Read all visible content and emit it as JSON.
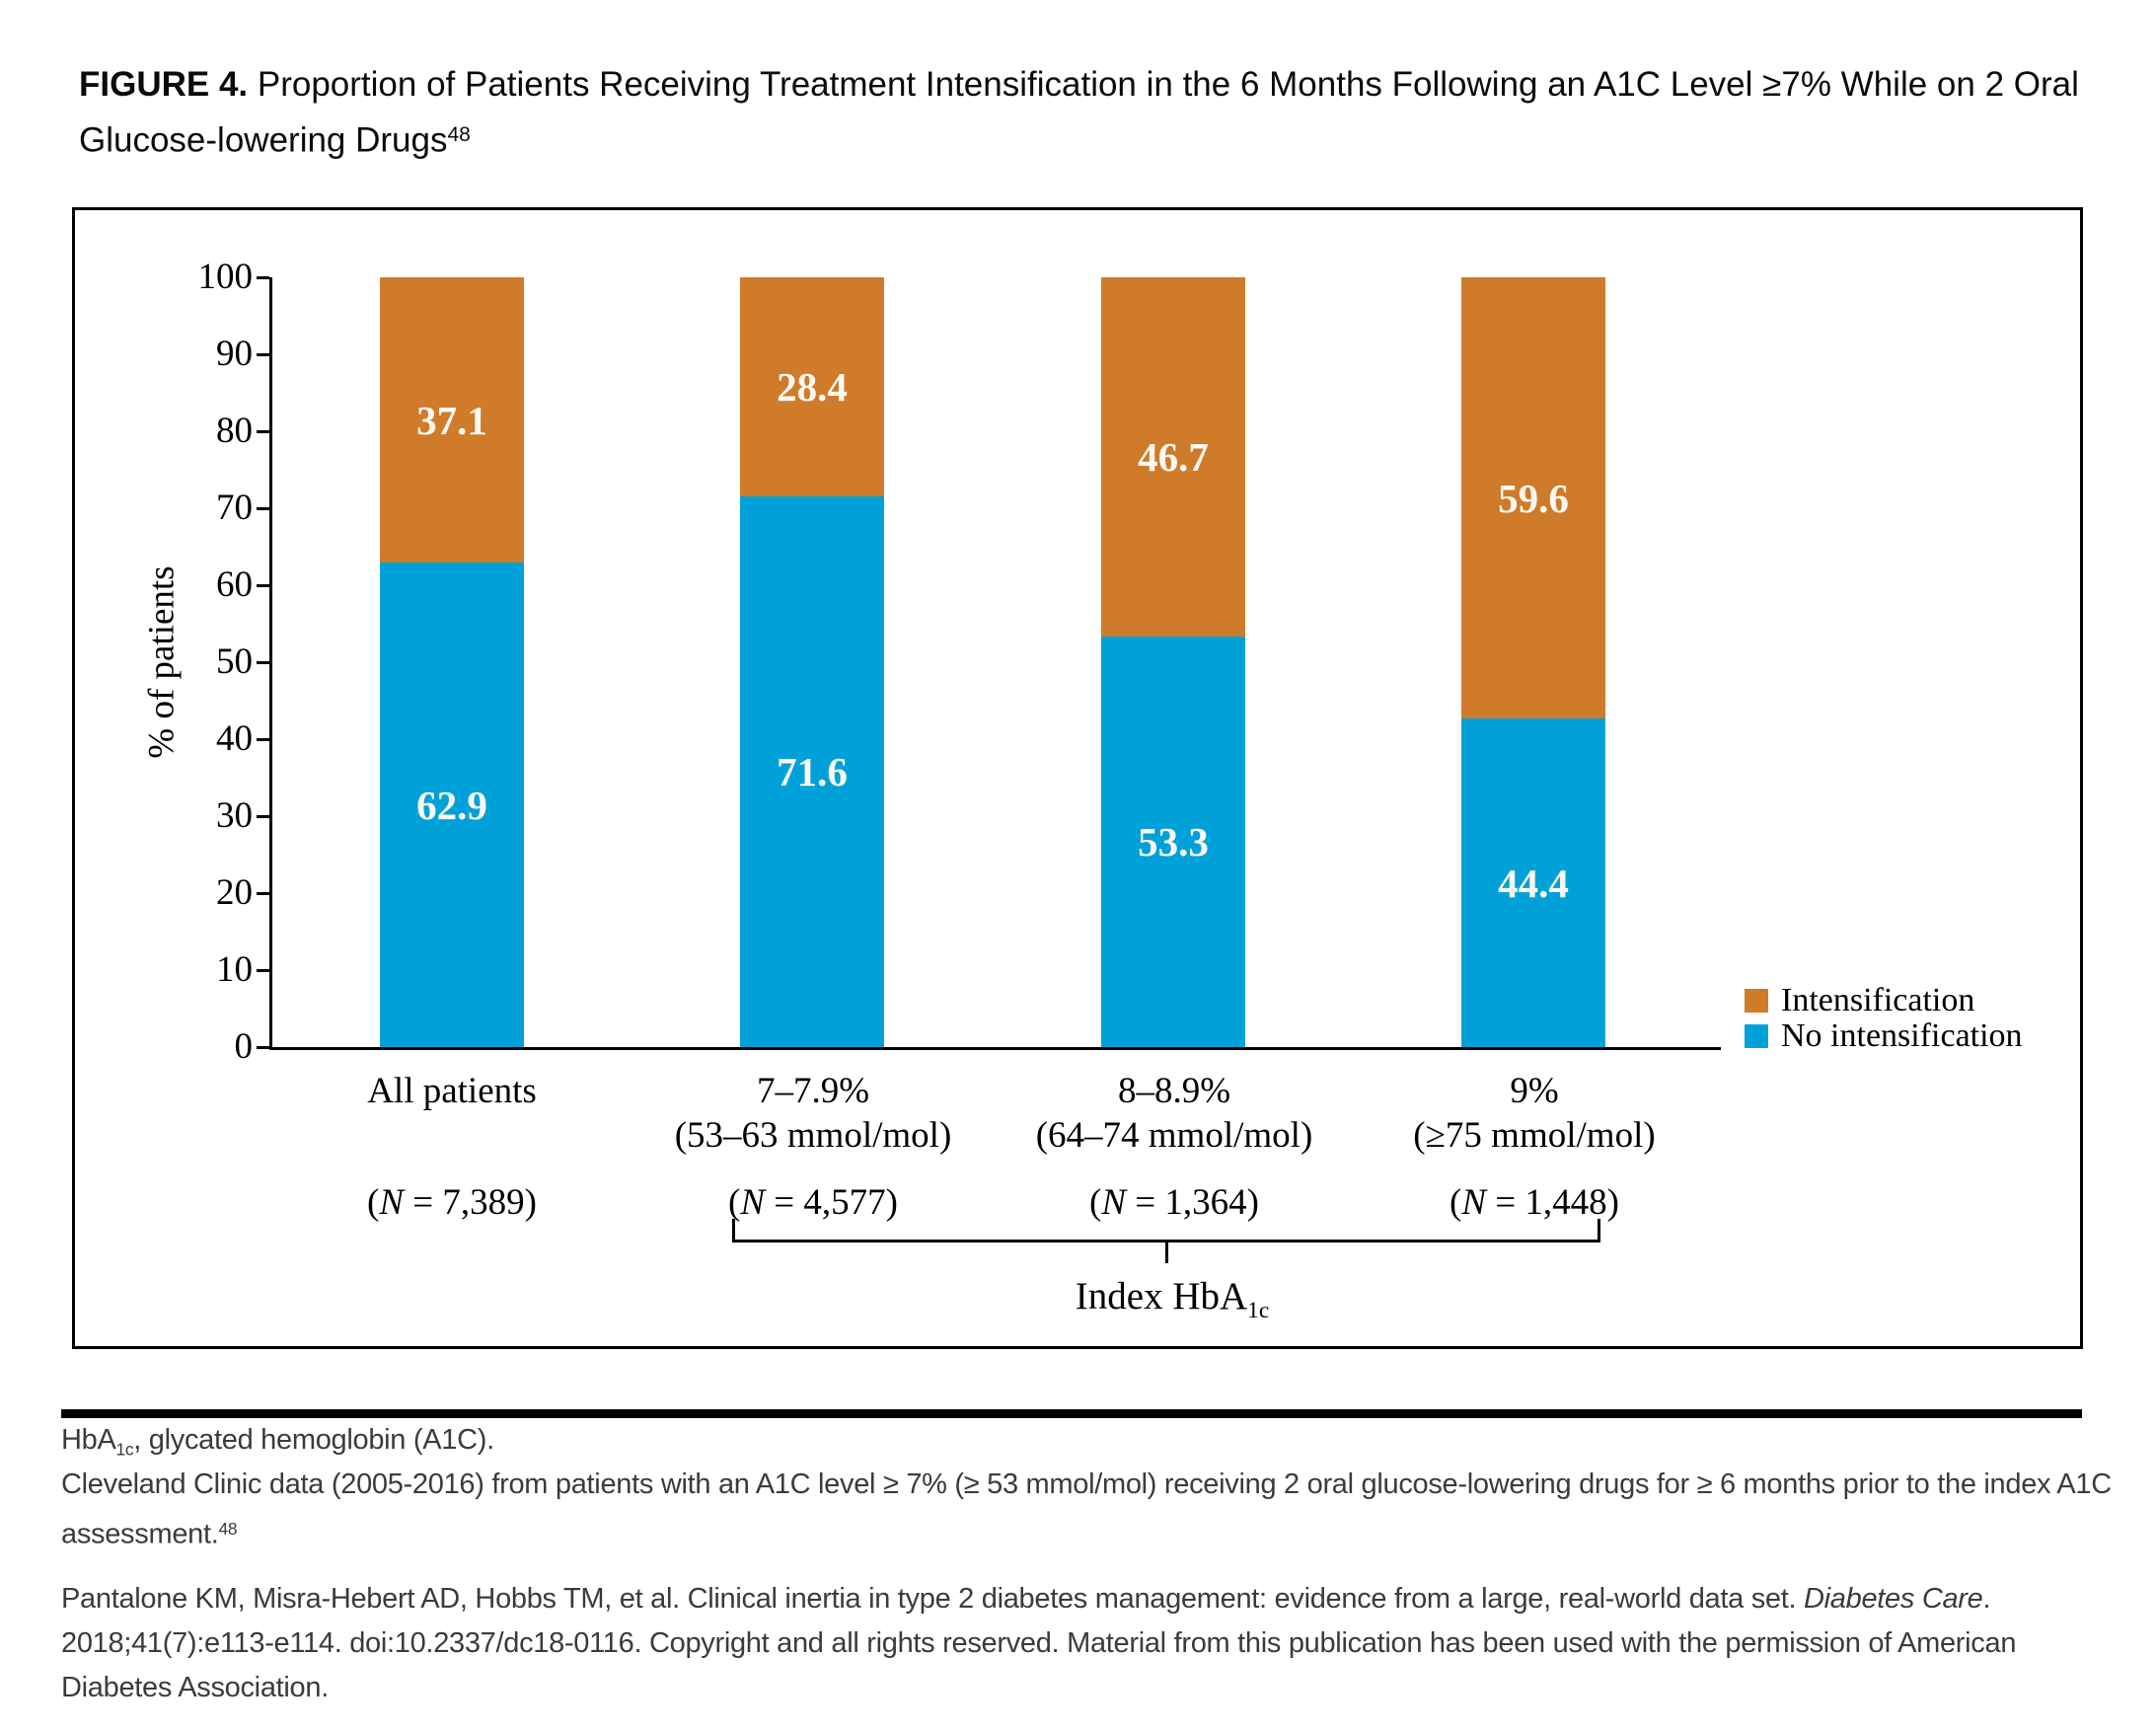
{
  "title": {
    "line1": [
      {
        "t": "FIGURE 4.",
        "s": "b"
      },
      {
        "t": " Proportion of Patients Receiving Treatment Intensification in the 6 Months Following an A1C Level ≥7% While on 2 Oral"
      }
    ],
    "line2": [
      {
        "t": "Glucose-lowering Drugs"
      },
      {
        "t": "48",
        "s": "sup"
      }
    ]
  },
  "chart_data": {
    "type": "bar",
    "stacked": true,
    "title": "Proportion of Patients Receiving Treatment Intensification in the 6 Months Following an A1C Level ≥7% While on 2 Oral Glucose-lowering Drugs",
    "categories": [
      "All patients",
      "7–7.9% (53–63 mmol/mol)",
      "8–8.9% (64–74 mmol/mol)",
      "9% (≥75 mmol/mol)"
    ],
    "group_sizes": [
      "(N = 7,389)",
      "(N = 4,577)",
      "(N = 1,364)",
      "(N = 1,448)"
    ],
    "series": [
      {
        "name": "No intensification",
        "color": "#00A1D8",
        "values": [
          62.9,
          71.6,
          53.3,
          44.4
        ]
      },
      {
        "name": "Intensification",
        "color": "#CF7B2A",
        "values": [
          37.1,
          28.4,
          46.7,
          59.6
        ]
      }
    ],
    "xlabel": "Index HbA1c",
    "ylabel": "% of patients",
    "ylim": [
      0,
      100
    ],
    "y_tick_step": 10,
    "grid": false,
    "legend_position": "right"
  },
  "chart": {
    "y_axis_label": "% of patients",
    "y_ticks": [
      "100",
      "90",
      "80",
      "70",
      "60",
      "50",
      "40",
      "30",
      "20",
      "10",
      "0"
    ],
    "legend": [
      {
        "label": "Intensification"
      },
      {
        "label": "No intensification"
      }
    ],
    "bars": [
      {
        "label": "All patients",
        "sublabel": "",
        "n_label": [
          {
            "t": "("
          },
          {
            "t": "N",
            "s": "i"
          },
          {
            "t": " = 7,389)"
          }
        ]
      },
      {
        "label": "7–7.9%",
        "sublabel": "(53–63 mmol/mol)",
        "n_label": [
          {
            "t": "("
          },
          {
            "t": "N",
            "s": "i"
          },
          {
            "t": " = 4,577)"
          }
        ]
      },
      {
        "label": "8–8.9%",
        "sublabel": "(64–74 mmol/mol)",
        "n_label": [
          {
            "t": "("
          },
          {
            "t": "N",
            "s": "i"
          },
          {
            "t": " = 1,364)"
          }
        ]
      },
      {
        "label": "9%",
        "sublabel": "(≥75 mmol/mol)",
        "n_label": [
          {
            "t": "("
          },
          {
            "t": "N",
            "s": "i"
          },
          {
            "t": " = 1,448)"
          }
        ]
      }
    ],
    "brace_caption": [
      {
        "t": "Index HbA"
      },
      {
        "t": "1c",
        "s": "sub"
      }
    ]
  },
  "footnotes": {
    "abbrev": [
      {
        "t": "HbA"
      },
      {
        "t": "1c",
        "s": "sub"
      },
      {
        "t": ", glycated hemoglobin (A1C)."
      }
    ],
    "source_line1": [
      {
        "t": "Cleveland Clinic data (2005-2016) from patients with an A1C level ≥ 7% (≥ 53 mmol/mol) receiving 2 oral glucose-lowering drugs for ≥ 6 months prior to the index A1C"
      }
    ],
    "source_line2": [
      {
        "t": "assessment."
      },
      {
        "t": "48",
        "s": "sup"
      }
    ],
    "citation_line1": [
      {
        "t": "Pantalone KM, Misra-Hebert AD, Hobbs TM, et al. Clinical inertia in type 2 diabetes management: evidence from a large, real-world data set. "
      },
      {
        "t": "Diabetes Care",
        "s": "i"
      },
      {
        "t": "."
      }
    ],
    "citation_line2": [
      {
        "t": "2018;41(7):e113-e114. doi:10.2337/dc18-0116. Copyright and all rights reserved. Material from this publication has been used with the permission of American"
      }
    ],
    "citation_line3": [
      {
        "t": "Diabetes Association."
      }
    ]
  }
}
